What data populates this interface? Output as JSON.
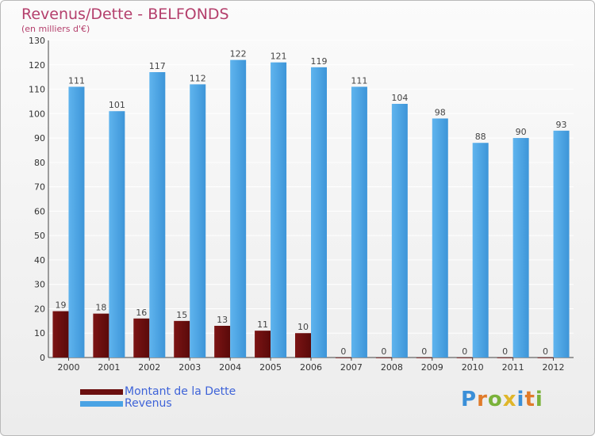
{
  "header": {
    "title": "Revenus/Dette - BELFONDS",
    "subtitle": "(en milliers d'€)"
  },
  "colors": {
    "debt": "#6b0f0f",
    "revenue": "#4aa3e4",
    "title": "#b43f6c",
    "legend_text": "#3e63d8"
  },
  "chart_data": {
    "type": "bar",
    "title": "Revenus/Dette - BELFONDS",
    "ylabel": "(en milliers d'€)",
    "xlabel": "",
    "ylim": [
      0,
      130
    ],
    "yticks": [
      0,
      10,
      20,
      30,
      40,
      50,
      60,
      70,
      80,
      90,
      100,
      110,
      120,
      130
    ],
    "grid": true,
    "categories": [
      "2000",
      "2001",
      "2002",
      "2003",
      "2004",
      "2005",
      "2006",
      "2007",
      "2008",
      "2009",
      "2010",
      "2011",
      "2012"
    ],
    "series": [
      {
        "name": "Montant de la Dette",
        "values": [
          19,
          18,
          16,
          15,
          13,
          11,
          10,
          0,
          0,
          0,
          0,
          0,
          0
        ]
      },
      {
        "name": "Revenus",
        "values": [
          111,
          101,
          117,
          112,
          122,
          121,
          119,
          111,
          104,
          98,
          88,
          90,
          93
        ]
      }
    ],
    "legend": "bottom-left"
  },
  "legend": {
    "items": [
      "Montant de la Dette",
      "Revenus"
    ]
  },
  "logo": {
    "letters": [
      "P",
      "r",
      "o",
      "x",
      "i",
      "t",
      "i"
    ],
    "colors": [
      "#3a8fd8",
      "#e07b2a",
      "#7ab23a",
      "#e0b62a",
      "#3a8fd8",
      "#e07b2a",
      "#7ab23a"
    ]
  }
}
